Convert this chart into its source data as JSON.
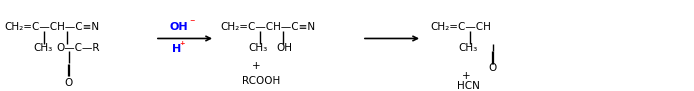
{
  "figsize": [
    6.94,
    0.91
  ],
  "dpi": 100,
  "background": "#ffffff",
  "fontsize": 7.5,
  "fontfamily": "DejaVu Sans",
  "text_color": "#000000",
  "mol1_main": "CH₂=C—CH—C≡N",
  "mol1_sub1": "CH₃",
  "mol1_sub2": "O—C—R",
  "mol1_sub3": "O",
  "mol2_main": "CH₂=C—CH—C≡N",
  "mol2_sub1": "CH₃",
  "mol2_sub2": "OH",
  "mol2_sub3": "+",
  "mol2_sub4": "RCOOH",
  "mol3_main": "CH₂=C—CH",
  "mol3_sub1": "CH₃",
  "mol3_sub2": "O",
  "mol3_sub3": "+",
  "mol3_sub4": "HCN",
  "arrow1_top": "OH",
  "arrow1_top_super": "⁻",
  "arrow1_bot": "H",
  "arrow1_bot_super": "⁺",
  "blue": "#0000ff",
  "red": "#ff0000",
  "black": "#000000"
}
